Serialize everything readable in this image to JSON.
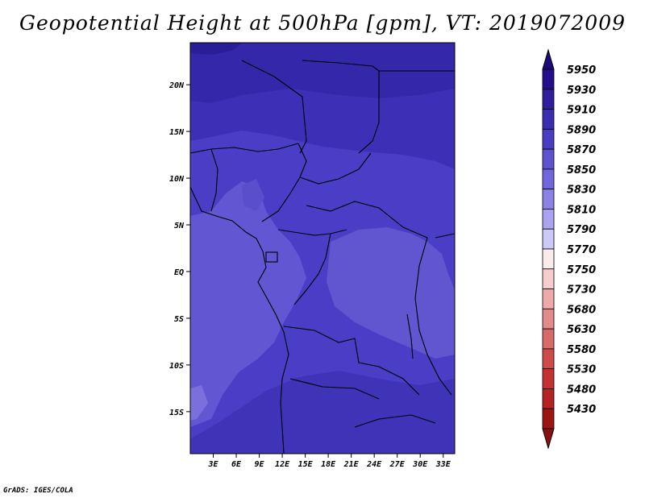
{
  "title": "Geopotential Height at 500hPa [gpm], VT: 2019072009",
  "credit": "GrADS: IGES/COLA",
  "map": {
    "lon_range": [
      0,
      34.5
    ],
    "lat_range": [
      -19.5,
      24.5
    ],
    "x_ticks": [
      {
        "value": 3,
        "label": "3E"
      },
      {
        "value": 6,
        "label": "6E"
      },
      {
        "value": 9,
        "label": "9E"
      },
      {
        "value": 12,
        "label": "12E"
      },
      {
        "value": 15,
        "label": "15E"
      },
      {
        "value": 18,
        "label": "18E"
      },
      {
        "value": 21,
        "label": "21E"
      },
      {
        "value": 24,
        "label": "24E"
      },
      {
        "value": 27,
        "label": "27E"
      },
      {
        "value": 30,
        "label": "30E"
      },
      {
        "value": 33,
        "label": "33E"
      }
    ],
    "y_ticks": [
      {
        "value": 20,
        "label": "20N"
      },
      {
        "value": 15,
        "label": "15N"
      },
      {
        "value": 10,
        "label": "10N"
      },
      {
        "value": 5,
        "label": "5N"
      },
      {
        "value": 0,
        "label": "EQ"
      },
      {
        "value": -5,
        "label": "5S"
      },
      {
        "value": -10,
        "label": "10S"
      },
      {
        "value": -15,
        "label": "15S"
      }
    ]
  },
  "colorbar": {
    "levels": [
      {
        "label": "5950",
        "color": "#250e8c"
      },
      {
        "label": "5930",
        "color": "#2f1d9e"
      },
      {
        "label": "5910",
        "color": "#3a2db0"
      },
      {
        "label": "5890",
        "color": "#4a3dc4"
      },
      {
        "label": "5870",
        "color": "#5d52d0"
      },
      {
        "label": "5850",
        "color": "#7266dc"
      },
      {
        "label": "5830",
        "color": "#8c82e6"
      },
      {
        "label": "5810",
        "color": "#aaa4f0"
      },
      {
        "label": "5790",
        "color": "#ccc8f7"
      },
      {
        "label": "5770",
        "color": "#fbecec"
      },
      {
        "label": "5750",
        "color": "#f6cccc"
      },
      {
        "label": "5730",
        "color": "#eeaaaa"
      },
      {
        "label": "5680",
        "color": "#e38a8a"
      },
      {
        "label": "5630",
        "color": "#d86a6a"
      },
      {
        "label": "5580",
        "color": "#cd4b4b"
      },
      {
        "label": "5530",
        "color": "#c43333"
      },
      {
        "label": "5480",
        "color": "#b42222"
      },
      {
        "label": "5430",
        "color": "#9c1414"
      }
    ],
    "top_color": "#1c0a78",
    "bottom_color": "#8a1010"
  }
}
